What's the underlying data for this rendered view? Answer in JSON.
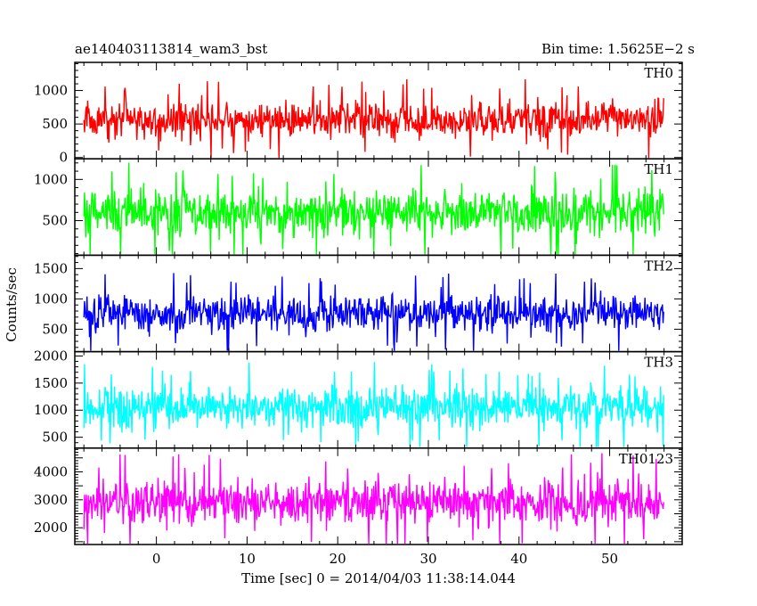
{
  "chart_data": {
    "type": "line",
    "title_left": "ae140403113814_wam3_bst",
    "title_right": "Bin time: 1.5625E−2 s",
    "xlabel": "Time [sec] 0 = 2014/04/03 11:38:14.044",
    "ylabel": "Counts/sec",
    "xlim": [
      -9,
      58
    ],
    "data_x_range": [
      -8.0,
      56.0
    ],
    "x_ticks": [
      0,
      10,
      20,
      30,
      40,
      50
    ],
    "panels": [
      {
        "name": "TH0",
        "color": "#ff0000",
        "ylim": [
          -20,
          1420
        ],
        "mean": 560,
        "spread": 190,
        "y_ticks": [
          0,
          500,
          1000
        ],
        "y_tick_labels": [
          "0",
          "500",
          "1000"
        ]
      },
      {
        "name": "TH1",
        "color": "#00ff00",
        "ylim": [
          80,
          1250
        ],
        "mean": 600,
        "spread": 190,
        "y_ticks": [
          500,
          1000
        ],
        "y_tick_labels": [
          "500",
          "1000"
        ]
      },
      {
        "name": "TH2",
        "color": "#0000ff",
        "ylim": [
          130,
          1720
        ],
        "mean": 760,
        "spread": 210,
        "y_ticks": [
          500,
          1000,
          1500
        ],
        "y_tick_labels": [
          "500",
          "1000",
          "1500"
        ]
      },
      {
        "name": "TH3",
        "color": "#00ffff",
        "ylim": [
          300,
          2080
        ],
        "mean": 1050,
        "spread": 270,
        "y_ticks": [
          500,
          1000,
          1500,
          2000
        ],
        "y_tick_labels": [
          "500",
          "1000",
          "1500",
          "2000"
        ]
      },
      {
        "name": "TH0123",
        "color": "#ff00ff",
        "ylim": [
          1400,
          4850
        ],
        "mean": 2900,
        "spread": 560,
        "y_ticks": [
          2000,
          3000,
          4000
        ],
        "y_tick_labels": [
          "2000",
          "3000",
          "4000"
        ]
      }
    ]
  }
}
